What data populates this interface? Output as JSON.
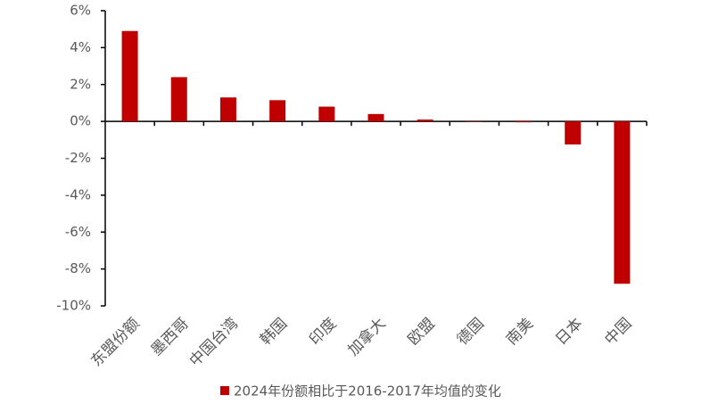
{
  "chart_data": {
    "type": "bar",
    "categories": [
      "东盟份额",
      "墨西哥",
      "中国台湾",
      "韩国",
      "印度",
      "加拿大",
      "欧盟",
      "德国",
      "南美",
      "日本",
      "中国"
    ],
    "series": [
      {
        "name": "2024年份额相比于2016-2017年均值的变化",
        "color": "#c00000",
        "values": [
          4.9,
          2.4,
          1.3,
          1.15,
          0.8,
          0.4,
          0.1,
          0.0,
          -0.05,
          -1.25,
          -8.8
        ]
      }
    ],
    "ylim": [
      -10,
      6
    ],
    "yticks": [
      {
        "value": 6,
        "label": "6%"
      },
      {
        "value": 4,
        "label": "4%"
      },
      {
        "value": 2,
        "label": "2%"
      },
      {
        "value": 0,
        "label": "0%"
      },
      {
        "value": -2,
        "label": "-2%"
      },
      {
        "value": -4,
        "label": "-4%"
      },
      {
        "value": -6,
        "label": "-6%"
      },
      {
        "value": -8,
        "label": "-8%"
      },
      {
        "value": -10,
        "label": "-10%"
      }
    ],
    "grid": false,
    "legend": "bottom"
  }
}
